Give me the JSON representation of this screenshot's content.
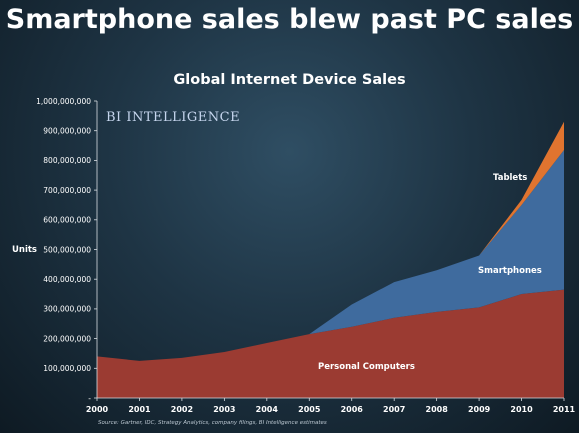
{
  "headline": "Smartphone sales blew past PC sales",
  "brand": "BI INTELLIGENCE",
  "source": "Source: Gartner, IDC, Strategy Analytics, company filings, BI Intelligence estimates",
  "colors": {
    "personal_computers": "#9b3b32",
    "smartphones": "#3f6b9e",
    "tablets": "#e0742f"
  },
  "chart_data": {
    "type": "area",
    "stacked": true,
    "title": "Global Internet Device Sales",
    "ylabel": "Units",
    "xlabel": "",
    "ylim": [
      0,
      1000000000
    ],
    "yticks": [
      0,
      100000000,
      200000000,
      300000000,
      400000000,
      500000000,
      600000000,
      700000000,
      800000000,
      900000000,
      1000000000
    ],
    "ytick_labels": [
      "-",
      "100,000,000",
      "200,000,000",
      "300,000,000",
      "400,000,000",
      "500,000,000",
      "600,000,000",
      "700,000,000",
      "800,000,000",
      "900,000,000",
      "1,000,000,000"
    ],
    "x": [
      "2000",
      "2001",
      "2002",
      "2003",
      "2004",
      "2005",
      "2006",
      "2007",
      "2008",
      "2009",
      "2010",
      "2011"
    ],
    "series": [
      {
        "name": "Personal Computers",
        "values": [
          140000000,
          125000000,
          135000000,
          155000000,
          185000000,
          215000000,
          240000000,
          270000000,
          290000000,
          305000000,
          350000000,
          365000000
        ]
      },
      {
        "name": "Smartphones",
        "values": [
          0,
          0,
          0,
          0,
          0,
          0,
          75000000,
          120000000,
          140000000,
          175000000,
          300000000,
          470000000
        ]
      },
      {
        "name": "Tablets",
        "values": [
          0,
          0,
          0,
          0,
          0,
          0,
          0,
          0,
          0,
          0,
          17000000,
          95000000
        ]
      }
    ],
    "grid": false,
    "legend": "inline labels"
  }
}
